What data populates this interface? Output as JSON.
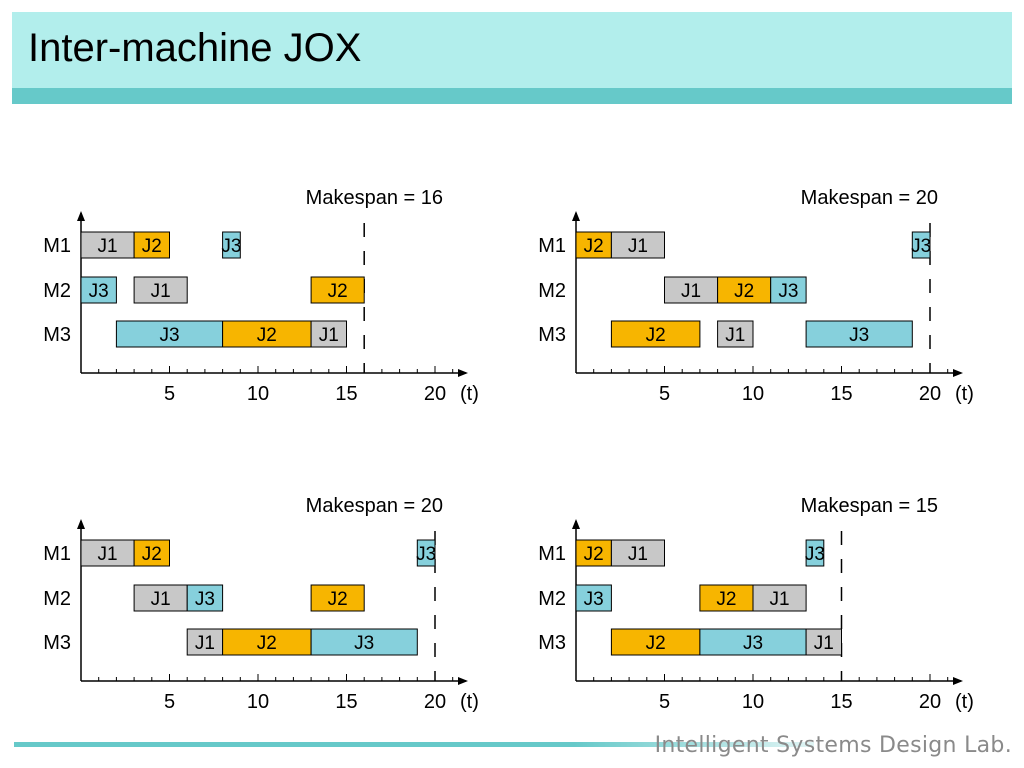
{
  "slide": {
    "title": "Inter-machine JOX",
    "footer": "Intelligent Systems Design Lab."
  },
  "colors": {
    "J1": "#c8c8c8",
    "J2": "#f7b500",
    "J3": "#86d0dc"
  },
  "chart_data": [
    {
      "type": "gantt",
      "annotation": "Makespan = 16",
      "makespan": 16,
      "machines": [
        "M1",
        "M2",
        "M3"
      ],
      "xlabel": "(t)",
      "xticks": [
        5,
        10,
        15,
        20
      ],
      "xlim": [
        0,
        21
      ],
      "tasks": [
        {
          "machine": "M1",
          "job": "J1",
          "start": 0,
          "end": 3
        },
        {
          "machine": "M1",
          "job": "J2",
          "start": 3,
          "end": 5
        },
        {
          "machine": "M1",
          "job": "J3",
          "start": 8,
          "end": 9
        },
        {
          "machine": "M2",
          "job": "J3",
          "start": 0,
          "end": 2
        },
        {
          "machine": "M2",
          "job": "J1",
          "start": 3,
          "end": 6
        },
        {
          "machine": "M2",
          "job": "J2",
          "start": 13,
          "end": 16
        },
        {
          "machine": "M3",
          "job": "J3",
          "start": 2,
          "end": 8
        },
        {
          "machine": "M3",
          "job": "J2",
          "start": 8,
          "end": 13
        },
        {
          "machine": "M3",
          "job": "J1",
          "start": 13,
          "end": 15
        }
      ]
    },
    {
      "type": "gantt",
      "annotation": "Makespan = 20",
      "makespan": 20,
      "machines": [
        "M1",
        "M2",
        "M3"
      ],
      "xlabel": "(t)",
      "xticks": [
        5,
        10,
        15,
        20
      ],
      "xlim": [
        0,
        21
      ],
      "tasks": [
        {
          "machine": "M1",
          "job": "J2",
          "start": 0,
          "end": 2
        },
        {
          "machine": "M1",
          "job": "J1",
          "start": 2,
          "end": 5
        },
        {
          "machine": "M1",
          "job": "J3",
          "start": 19,
          "end": 20
        },
        {
          "machine": "M2",
          "job": "J1",
          "start": 5,
          "end": 8
        },
        {
          "machine": "M2",
          "job": "J2",
          "start": 8,
          "end": 11
        },
        {
          "machine": "M2",
          "job": "J3",
          "start": 11,
          "end": 13
        },
        {
          "machine": "M3",
          "job": "J2",
          "start": 2,
          "end": 7
        },
        {
          "machine": "M3",
          "job": "J1",
          "start": 8,
          "end": 10
        },
        {
          "machine": "M3",
          "job": "J3",
          "start": 13,
          "end": 19
        }
      ]
    },
    {
      "type": "gantt",
      "annotation": "Makespan = 20",
      "makespan": 20,
      "machines": [
        "M1",
        "M2",
        "M3"
      ],
      "xlabel": "(t)",
      "xticks": [
        5,
        10,
        15,
        20
      ],
      "xlim": [
        0,
        21
      ],
      "tasks": [
        {
          "machine": "M1",
          "job": "J1",
          "start": 0,
          "end": 3
        },
        {
          "machine": "M1",
          "job": "J2",
          "start": 3,
          "end": 5
        },
        {
          "machine": "M1",
          "job": "J3",
          "start": 19,
          "end": 20
        },
        {
          "machine": "M2",
          "job": "J1",
          "start": 3,
          "end": 6
        },
        {
          "machine": "M2",
          "job": "J3",
          "start": 6,
          "end": 8
        },
        {
          "machine": "M2",
          "job": "J2",
          "start": 13,
          "end": 16
        },
        {
          "machine": "M3",
          "job": "J1",
          "start": 6,
          "end": 8
        },
        {
          "machine": "M3",
          "job": "J2",
          "start": 8,
          "end": 13
        },
        {
          "machine": "M3",
          "job": "J3",
          "start": 13,
          "end": 19
        }
      ]
    },
    {
      "type": "gantt",
      "annotation": "Makespan = 15",
      "makespan": 15,
      "machines": [
        "M1",
        "M2",
        "M3"
      ],
      "xlabel": "(t)",
      "xticks": [
        5,
        10,
        15,
        20
      ],
      "xlim": [
        0,
        21
      ],
      "tasks": [
        {
          "machine": "M1",
          "job": "J2",
          "start": 0,
          "end": 2
        },
        {
          "machine": "M1",
          "job": "J1",
          "start": 2,
          "end": 5
        },
        {
          "machine": "M1",
          "job": "J3",
          "start": 13,
          "end": 14
        },
        {
          "machine": "M2",
          "job": "J3",
          "start": 0,
          "end": 2
        },
        {
          "machine": "M2",
          "job": "J2",
          "start": 7,
          "end": 10
        },
        {
          "machine": "M2",
          "job": "J1",
          "start": 10,
          "end": 13
        },
        {
          "machine": "M3",
          "job": "J2",
          "start": 2,
          "end": 7
        },
        {
          "machine": "M3",
          "job": "J3",
          "start": 7,
          "end": 13
        },
        {
          "machine": "M3",
          "job": "J1",
          "start": 13,
          "end": 15
        }
      ]
    }
  ]
}
